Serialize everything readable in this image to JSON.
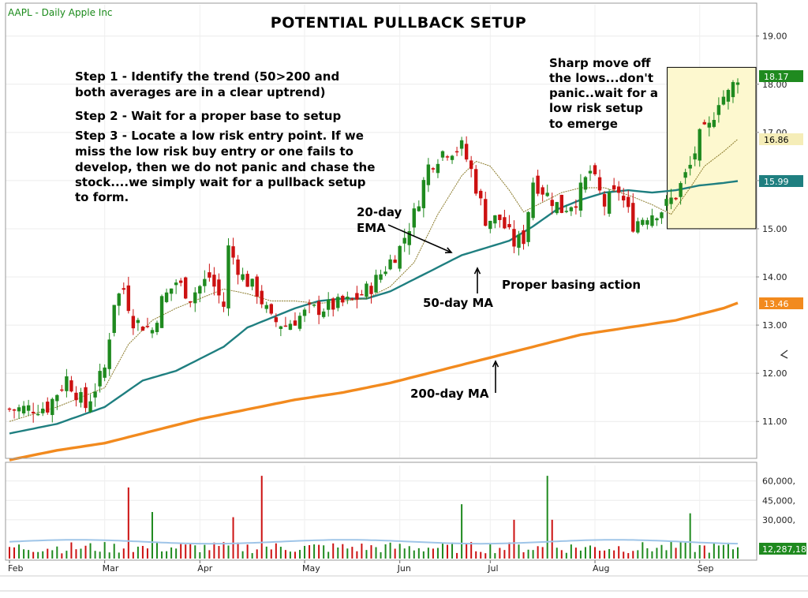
{
  "header": {
    "symbol": "AAPL",
    "period": "Daily",
    "company": "Apple Inc",
    "ticker_text": "AAPL - Daily  Apple Inc"
  },
  "colors": {
    "up": "#1f8a1f",
    "down": "#cc1111",
    "ema20": "#8a7a2a",
    "ma50": "#1f7f80",
    "ma200": "#f28a1e",
    "highlight_fill": "#fdf8cf",
    "volume_avg": "#9fc5e8"
  },
  "annotations": {
    "steps": [
      "Step 1 - Identify the trend (50>200 and both averages are in a clear uptrend)",
      "Step 2 - Wait for a proper base to setup",
      "Step 3 - Locate a low risk entry point.  If we miss the low risk buy entry or one fails to develop, then we do not panic and chase the stock....we simply wait for a pullback setup to form."
    ],
    "step1_line1": "Step 1 - Identify the trend (50>200 and",
    "step1_line2": "both averages are in a clear uptrend)",
    "step2": "Step 2 - Wait for a proper base to setup",
    "step3_line1": "Step 3 - Locate a low risk entry point.  If we",
    "step3_line2": "miss the low risk buy entry or one fails to",
    "step3_line3": "develop, then we do not panic and chase the",
    "step3_line4": "stock....we simply wait for a pullback setup",
    "step3_line5": "to form.",
    "ema_label_1": "20-day",
    "ema_label_2": "EMA",
    "ma50_label": "50-day MA",
    "ma200_label": "200-day MA",
    "basing_label": "Proper basing action",
    "sharp_1": "Sharp move off",
    "sharp_2": "the lows...don't",
    "sharp_3": "panic..wait for a",
    "sharp_4": "low risk setup",
    "sharp_5": "to emerge"
  },
  "chart_data": {
    "type": "candlestick",
    "title": "POTENTIAL PULLBACK SETUP",
    "price_axis": {
      "ticks": [
        11.0,
        12.0,
        13.0,
        14.0,
        15.0,
        16.0,
        17.0,
        18.0,
        19.0
      ],
      "tick_labels": [
        "11.00",
        "12.00",
        "13.00",
        "14.00",
        "15.00",
        "16.00",
        "17.00",
        "18.00",
        "19.00"
      ],
      "ylim": [
        10.25,
        19.65
      ]
    },
    "volume_axis": {
      "ticks": [
        30000,
        45000,
        60000
      ],
      "tick_labels": [
        "30,000,",
        "45,000,",
        "60,000,"
      ],
      "ylim": [
        0,
        72000
      ]
    },
    "month_labels": [
      "Feb",
      "Mar",
      "Apr",
      "May",
      "Jun",
      "Jul",
      "Aug",
      "Sep"
    ],
    "month_start_index": [
      0,
      20,
      40,
      62,
      82,
      101,
      123,
      145
    ],
    "last_values": {
      "close": 18.17,
      "ema20": 16.86,
      "ma50": 15.99,
      "ma200": 13.46,
      "volume": "12,287,18"
    },
    "last_value_labels": [
      "18.17",
      "16.86",
      "15.99",
      "13.46",
      "12,287,18"
    ],
    "price_key_points": [
      [
        0,
        11.25
      ],
      [
        8,
        11.3
      ],
      [
        12,
        11.9
      ],
      [
        16,
        11.3
      ],
      [
        20,
        12.1
      ],
      [
        22,
        13.5
      ],
      [
        24,
        13.75
      ],
      [
        26,
        13.1
      ],
      [
        30,
        12.9
      ],
      [
        32,
        13.5
      ],
      [
        35,
        13.9
      ],
      [
        38,
        13.6
      ],
      [
        42,
        14.0
      ],
      [
        45,
        13.4
      ],
      [
        46,
        14.6
      ],
      [
        49,
        14.0
      ],
      [
        52,
        13.7
      ],
      [
        55,
        13.1
      ],
      [
        58,
        13.0
      ],
      [
        63,
        13.3
      ],
      [
        68,
        13.4
      ],
      [
        72,
        13.5
      ],
      [
        76,
        13.8
      ],
      [
        79,
        14.2
      ],
      [
        82,
        14.6
      ],
      [
        85,
        15.3
      ],
      [
        88,
        16.3
      ],
      [
        91,
        16.6
      ],
      [
        95,
        16.7
      ],
      [
        97,
        16.2
      ],
      [
        100,
        15.2
      ],
      [
        103,
        15.2
      ],
      [
        106,
        14.7
      ],
      [
        108,
        14.8
      ],
      [
        110,
        16.0
      ],
      [
        113,
        15.7
      ],
      [
        116,
        15.4
      ],
      [
        119,
        15.6
      ],
      [
        122,
        16.2
      ],
      [
        125,
        15.5
      ],
      [
        128,
        15.8
      ],
      [
        131,
        15.1
      ],
      [
        134,
        15.3
      ],
      [
        137,
        15.4
      ],
      [
        140,
        15.7
      ],
      [
        143,
        16.3
      ],
      [
        145,
        16.9
      ],
      [
        147,
        17.1
      ],
      [
        149,
        17.7
      ],
      [
        151,
        17.8
      ],
      [
        153,
        18.17
      ]
    ],
    "ema20_key_points": [
      [
        0,
        11.0
      ],
      [
        10,
        11.3
      ],
      [
        20,
        11.7
      ],
      [
        25,
        12.6
      ],
      [
        30,
        13.1
      ],
      [
        35,
        13.35
      ],
      [
        40,
        13.55
      ],
      [
        45,
        13.75
      ],
      [
        50,
        13.65
      ],
      [
        55,
        13.5
      ],
      [
        60,
        13.5
      ],
      [
        65,
        13.45
      ],
      [
        70,
        13.5
      ],
      [
        75,
        13.55
      ],
      [
        80,
        13.8
      ],
      [
        85,
        14.3
      ],
      [
        90,
        15.3
      ],
      [
        95,
        16.1
      ],
      [
        98,
        16.4
      ],
      [
        101,
        16.3
      ],
      [
        105,
        15.8
      ],
      [
        108,
        15.35
      ],
      [
        112,
        15.55
      ],
      [
        116,
        15.75
      ],
      [
        120,
        15.85
      ],
      [
        125,
        15.85
      ],
      [
        130,
        15.7
      ],
      [
        135,
        15.5
      ],
      [
        139,
        15.3
      ],
      [
        143,
        15.85
      ],
      [
        146,
        16.3
      ],
      [
        150,
        16.6
      ],
      [
        153,
        16.86
      ]
    ],
    "ma50_key_points": [
      [
        0,
        10.75
      ],
      [
        10,
        10.95
      ],
      [
        20,
        11.3
      ],
      [
        28,
        11.85
      ],
      [
        35,
        12.05
      ],
      [
        45,
        12.55
      ],
      [
        50,
        12.95
      ],
      [
        55,
        13.15
      ],
      [
        60,
        13.35
      ],
      [
        65,
        13.5
      ],
      [
        70,
        13.55
      ],
      [
        75,
        13.55
      ],
      [
        80,
        13.7
      ],
      [
        85,
        13.95
      ],
      [
        90,
        14.2
      ],
      [
        95,
        14.45
      ],
      [
        100,
        14.6
      ],
      [
        105,
        14.75
      ],
      [
        110,
        15.05
      ],
      [
        115,
        15.4
      ],
      [
        120,
        15.6
      ],
      [
        125,
        15.75
      ],
      [
        130,
        15.8
      ],
      [
        135,
        15.75
      ],
      [
        140,
        15.8
      ],
      [
        145,
        15.9
      ],
      [
        150,
        15.95
      ],
      [
        153,
        15.99
      ]
    ],
    "ma200_key_points": [
      [
        0,
        10.2
      ],
      [
        10,
        10.4
      ],
      [
        20,
        10.55
      ],
      [
        30,
        10.8
      ],
      [
        40,
        11.05
      ],
      [
        50,
        11.25
      ],
      [
        60,
        11.45
      ],
      [
        70,
        11.6
      ],
      [
        80,
        11.8
      ],
      [
        90,
        12.05
      ],
      [
        100,
        12.3
      ],
      [
        110,
        12.55
      ],
      [
        120,
        12.8
      ],
      [
        130,
        12.95
      ],
      [
        140,
        13.1
      ],
      [
        150,
        13.35
      ],
      [
        153,
        13.46
      ]
    ],
    "volume_avg_approx": 13000,
    "volume_spikes": [
      [
        25,
        55000
      ],
      [
        30,
        36000
      ],
      [
        47,
        32000
      ],
      [
        53,
        64000
      ],
      [
        95,
        42000
      ],
      [
        106,
        30000
      ],
      [
        113,
        64000
      ],
      [
        114,
        30000
      ],
      [
        143,
        35000
      ]
    ],
    "num_candles": 154,
    "highlight_box": {
      "from_index": 139,
      "to_index": 153,
      "low": 15.0,
      "high": 18.35
    }
  }
}
